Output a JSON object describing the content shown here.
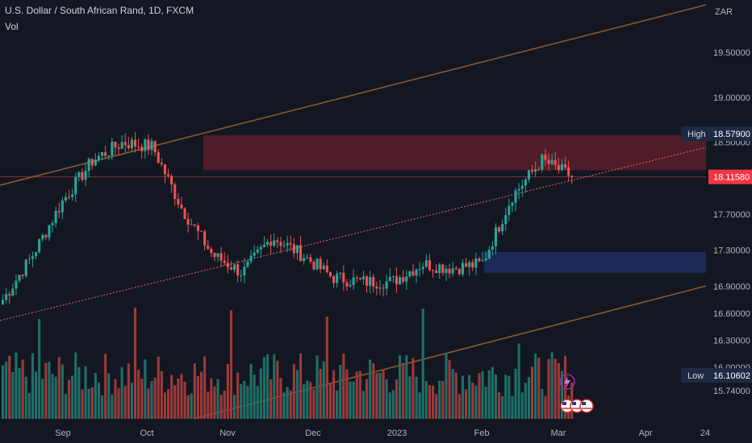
{
  "header": {
    "title": "U.S. Dollar / South African Rand, 1D, FXCM",
    "indicator": "Vol"
  },
  "price_axis": {
    "currency": "ZAR",
    "ticks": [
      "19.50000",
      "19.00000",
      "18.50000",
      "17.70000",
      "17.30000",
      "16.90000",
      "16.60000",
      "16.30000",
      "16.00000",
      "15.74000"
    ],
    "tick_values": [
      19.5,
      19.0,
      18.5,
      17.7,
      17.3,
      16.9,
      16.6,
      16.3,
      16.0,
      15.74
    ]
  },
  "time_axis": {
    "labels": [
      "Sep",
      "Oct",
      "Nov",
      "Dec",
      "2023",
      "Feb",
      "Mar",
      "Apr",
      "24"
    ]
  },
  "badges": {
    "high_label": "High",
    "high_value": "18.57900",
    "current_value": "18.11580",
    "low_label": "Low",
    "low_value": "16.10602"
  },
  "colors": {
    "background": "#131722",
    "up": "#26a69a",
    "down": "#ef5350",
    "volume_up": "#1f6f68",
    "volume_down": "#9c3a3a",
    "channel_line": "#8a5a2b",
    "midline": "#f06070",
    "resistance_zone": "#5a1f29",
    "support_zone": "#1f2d5c",
    "high_badge": "#1e2a44",
    "current_badge": "#f23645",
    "axis_text": "#b2b5be"
  },
  "events": {
    "lightning_icon": "lightning-icon",
    "flag_icons": [
      "us-flag-icon",
      "us-flag-icon",
      "us-flag-icon"
    ]
  },
  "chart_data": {
    "type": "candlestick",
    "title": "U.S. Dollar / South African Rand, 1D, FXCM",
    "y_unit": "ZAR",
    "ylim": [
      15.74,
      19.9
    ],
    "high": 18.579,
    "low": 16.10602,
    "last": 18.1158,
    "key_points": [
      {
        "x": "Aug",
        "y": 16.75
      },
      {
        "x": "Sep",
        "y": 17.25
      },
      {
        "x": "Sep",
        "y": 17.85
      },
      {
        "x": "Oct",
        "y": 18.3
      },
      {
        "x": "Oct",
        "y": 18.5
      },
      {
        "x": "Nov",
        "y": 18.45
      },
      {
        "x": "Nov",
        "y": 17.75
      },
      {
        "x": "Nov",
        "y": 17.25
      },
      {
        "x": "Dec",
        "y": 17.05
      },
      {
        "x": "Dec",
        "y": 17.45
      },
      {
        "x": "Dec",
        "y": 17.25
      },
      {
        "x": "2023",
        "y": 17.0
      },
      {
        "x": "2023",
        "y": 16.95
      },
      {
        "x": "2023",
        "y": 16.95
      },
      {
        "x": "Jan",
        "y": 17.15
      },
      {
        "x": "Jan",
        "y": 17.1
      },
      {
        "x": "Feb",
        "y": 17.15
      },
      {
        "x": "Feb",
        "y": 17.9
      },
      {
        "x": "Feb",
        "y": 18.3
      },
      {
        "x": "Mar",
        "y": 18.12
      }
    ],
    "zones": [
      {
        "name": "resistance",
        "from": 18.19,
        "to": 18.58
      },
      {
        "name": "support",
        "from": 17.05,
        "to": 17.28
      }
    ],
    "volume": "relative",
    "grid": false
  }
}
